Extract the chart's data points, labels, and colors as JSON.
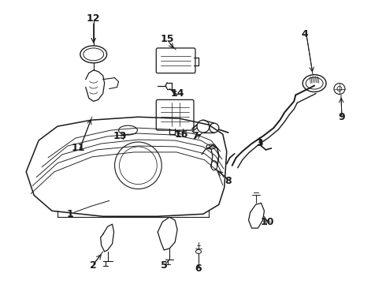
{
  "bg_color": "#ffffff",
  "line_color": "#1a1a1a",
  "figsize": [
    4.9,
    3.6
  ],
  "dpi": 100,
  "labels": [
    [
      "1",
      88,
      272
    ],
    [
      "2",
      118,
      338
    ],
    [
      "3",
      330,
      182
    ],
    [
      "4",
      388,
      42
    ],
    [
      "5",
      208,
      338
    ],
    [
      "6",
      252,
      342
    ],
    [
      "7",
      248,
      172
    ],
    [
      "8",
      290,
      230
    ],
    [
      "9",
      435,
      148
    ],
    [
      "10",
      340,
      282
    ],
    [
      "11",
      98,
      188
    ],
    [
      "12",
      118,
      22
    ],
    [
      "13",
      152,
      172
    ],
    [
      "14",
      225,
      118
    ],
    [
      "15",
      212,
      48
    ],
    [
      "16",
      230,
      170
    ]
  ]
}
